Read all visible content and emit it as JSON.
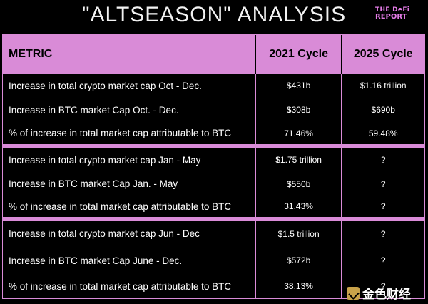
{
  "title": "\"ALTSEASON\" ANALYSIS",
  "logo": {
    "line1": "THE DeFi",
    "line2": "REPORT"
  },
  "table": {
    "headers": [
      "METRIC",
      "2021 Cycle",
      "2025 Cycle"
    ],
    "groups": [
      {
        "rows": [
          {
            "metric": "Increase in total crypto market cap Oct - Dec.",
            "c2021": "$431b",
            "c2025": "$1.16 trillion"
          },
          {
            "metric": "Increase in BTC market Cap Oct. - Dec.",
            "c2021": "$308b",
            "c2025": "$690b"
          },
          {
            "metric": "% of increase in total market cap attributable to BTC",
            "c2021": "71.46%",
            "c2025": "59.48%"
          }
        ]
      },
      {
        "rows": [
          {
            "metric": "Increase in total crypto market cap Jan - May",
            "c2021": "$1.75 trillion",
            "c2025": "?"
          },
          {
            "metric": "Increase in BTC market Cap Jan. - May",
            "c2021": "$550b",
            "c2025": "?"
          },
          {
            "metric": "% of increase in total market cap attributable to BTC",
            "c2021": "31.43%",
            "c2025": "?"
          }
        ]
      },
      {
        "rows": [
          {
            "metric": "Increase in total crypto market cap Jun - Dec",
            "c2021": "$1.5 trillion",
            "c2025": "?"
          },
          {
            "metric": "Increase in BTC market Cap June - Dec.",
            "c2021": "$572b",
            "c2025": "?"
          },
          {
            "metric": "% of increase in total market cap attributable to BTC",
            "c2021": "38.13%",
            "c2025": "?"
          }
        ]
      }
    ]
  },
  "watermark": "金色财经",
  "colors": {
    "accent": "#d98bd7",
    "background": "#000000",
    "logo": "#e37be6"
  }
}
